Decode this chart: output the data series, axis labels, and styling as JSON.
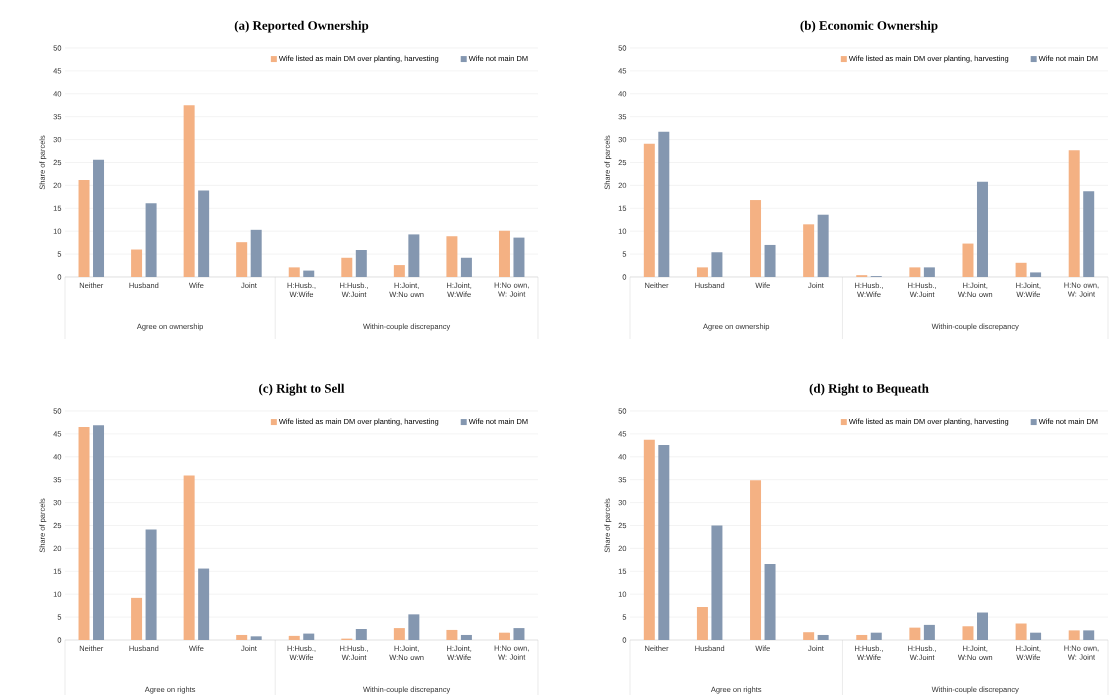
{
  "chart_data": [
    {
      "type": "bar",
      "title": "(a) Reported Ownership",
      "ylabel": "Share of parcels",
      "categories": [
        "Neither",
        "Husband",
        "Wife",
        "Joint",
        "H:Husb., W:Wife",
        "H:Husb., W:Joint",
        "H:Joint, W:No own",
        "H:Joint, W:Wife",
        "H:No own, W: Joint"
      ],
      "series": [
        {
          "name": "Wife listed as main DM over planting, harvesting",
          "color": "#f4b183",
          "values": [
            21.2,
            6.0,
            37.5,
            7.6,
            2.1,
            4.2,
            2.6,
            8.9,
            10.1
          ]
        },
        {
          "name": "Wife not main DM",
          "color": "#8497b0",
          "values": [
            25.6,
            16.1,
            18.9,
            10.3,
            1.4,
            5.9,
            9.3,
            4.2,
            8.6
          ]
        }
      ],
      "ylim": [
        0,
        50
      ],
      "yticks": [
        0,
        5,
        10,
        15,
        20,
        25,
        30,
        35,
        40,
        45,
        50
      ],
      "grid": "y",
      "legend": "top right",
      "annotations": [
        "Agree on ownership",
        "Within-couple discrepancy"
      ]
    },
    {
      "type": "bar",
      "title": "(b) Economic Ownership",
      "ylabel": "Share of parcels",
      "categories": [
        "Neither",
        "Husband",
        "Wife",
        "Joint",
        "H:Husb., W:Wife",
        "H:Husb., W:Joint",
        "H:Joint, W:No own",
        "H:Joint, W:Wife",
        "H:No own, W: Joint"
      ],
      "series": [
        {
          "name": "Wife listed as main DM over planting, harvesting",
          "color": "#f4b183",
          "values": [
            29.1,
            2.1,
            16.8,
            11.5,
            0.4,
            2.1,
            7.3,
            3.1,
            27.7
          ]
        },
        {
          "name": "Wife not main DM",
          "color": "#8497b0",
          "values": [
            31.7,
            5.4,
            7.0,
            13.6,
            0.2,
            2.1,
            20.8,
            1.0,
            18.7
          ]
        }
      ],
      "ylim": [
        0,
        50
      ],
      "yticks": [
        0,
        5,
        10,
        15,
        20,
        25,
        30,
        35,
        40,
        45,
        50
      ],
      "grid": "y",
      "legend": "top right",
      "annotations": [
        "Agree on ownership",
        "Within-couple discrepancy"
      ]
    },
    {
      "type": "bar",
      "title": "(c) Right to Sell",
      "ylabel": "Share of parcels",
      "categories": [
        "Neither",
        "Husband",
        "Wife",
        "Joint",
        "H:Husb., W:Wife",
        "H:Husb., W:Joint",
        "H:Joint, W:No own",
        "H:Joint, W:Wife",
        "H:No own, W: Joint"
      ],
      "series": [
        {
          "name": "Wife listed as main DM over planting, harvesting",
          "color": "#f4b183",
          "values": [
            46.5,
            9.2,
            35.9,
            1.1,
            0.9,
            0.3,
            2.6,
            2.2,
            1.6
          ]
        },
        {
          "name": "Wife not main DM",
          "color": "#8497b0",
          "values": [
            46.9,
            24.1,
            15.6,
            0.8,
            1.4,
            2.4,
            5.6,
            1.1,
            2.6
          ]
        }
      ],
      "ylim": [
        0,
        50
      ],
      "yticks": [
        0,
        5,
        10,
        15,
        20,
        25,
        30,
        35,
        40,
        45,
        50
      ],
      "grid": "y",
      "legend": "top right",
      "annotations": [
        "Agree on rights",
        "Within-couple discrepancy"
      ]
    },
    {
      "type": "bar",
      "title": "(d) Right to Bequeath",
      "ylabel": "Share of parcels",
      "categories": [
        "Neither",
        "Husband",
        "Wife",
        "Joint",
        "H:Husb., W:Wife",
        "H:Husb., W:Joint",
        "H:Joint, W:No own",
        "H:Joint, W:Wife",
        "H:No own, W: Joint"
      ],
      "series": [
        {
          "name": "Wife listed as main DM over planting, harvesting",
          "color": "#f4b183",
          "values": [
            43.7,
            7.2,
            34.9,
            1.7,
            1.1,
            2.7,
            3.0,
            3.6,
            2.1
          ]
        },
        {
          "name": "Wife not main DM",
          "color": "#8497b0",
          "values": [
            42.6,
            25.0,
            16.6,
            1.1,
            1.6,
            3.3,
            6.0,
            1.6,
            2.1
          ]
        }
      ],
      "ylim": [
        0,
        50
      ],
      "yticks": [
        0,
        5,
        10,
        15,
        20,
        25,
        30,
        35,
        40,
        45,
        50
      ],
      "grid": "y",
      "legend": "top right",
      "annotations": [
        "Agree on rights",
        "Within-couple discrepancy"
      ]
    }
  ]
}
